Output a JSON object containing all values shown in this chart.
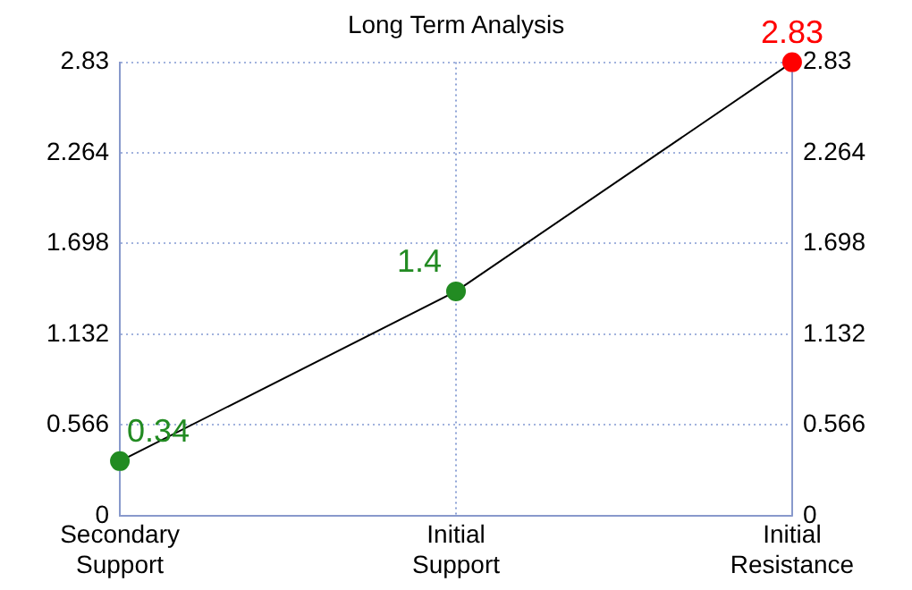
{
  "chart_data": {
    "type": "line",
    "title": "Long Term Analysis",
    "categories": [
      "Secondary Support",
      "Initial Support",
      "Initial Resistance"
    ],
    "series": [
      {
        "color": "#000000",
        "colors": [
          "#228b22",
          "#228b22",
          "#ff0000"
        ],
        "values": [
          0.34,
          1.4,
          2.83
        ]
      }
    ],
    "ylim": [
      0,
      2.83
    ],
    "yticks": [
      0,
      0.566,
      1.132,
      1.698,
      2.264,
      2.83
    ],
    "y2lim": [
      0,
      2.83
    ],
    "y2ticks": [
      0,
      0.566,
      1.132,
      1.698,
      2.264,
      2.83
    ],
    "grid": true,
    "legend": false,
    "marker": "circle",
    "line_style": "solid",
    "data_labels": true
  }
}
